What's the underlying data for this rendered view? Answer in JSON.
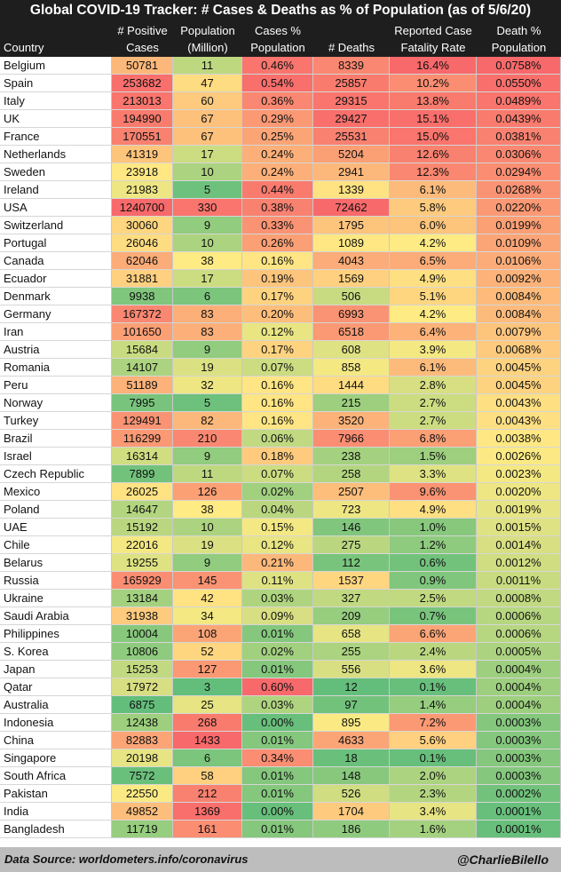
{
  "title": "Global COVID-19 Tracker: # Cases & Deaths as % of Population (as of 5/6/20)",
  "headers": {
    "country": "Country",
    "cases_1": "# Positive",
    "cases_2": "Cases",
    "pop_1": "Population",
    "pop_2": "(Million)",
    "casepct_1": "Cases %",
    "casepct_2": "Population",
    "deaths_1": "# Deaths",
    "cfr_1": "Reported Case",
    "cfr_2": "Fatality Rate",
    "deathpct_1": "Death %",
    "deathpct_2": "Population"
  },
  "footer": {
    "source": "Data Source: worldometers.info/coronavirus",
    "handle": "@CharlieBilello"
  },
  "chart_data": {
    "type": "table",
    "columns": [
      "Country",
      "# Positive Cases",
      "Population (Million)",
      "Cases % Population",
      "# Deaths",
      "Reported Case Fatality Rate",
      "Death % Population"
    ],
    "rows": [
      [
        "Belgium",
        "50781",
        "11",
        "0.46%",
        "8339",
        "16.4%",
        "0.0758%"
      ],
      [
        "Spain",
        "253682",
        "47",
        "0.54%",
        "25857",
        "10.2%",
        "0.0550%"
      ],
      [
        "Italy",
        "213013",
        "60",
        "0.36%",
        "29315",
        "13.8%",
        "0.0489%"
      ],
      [
        "UK",
        "194990",
        "67",
        "0.29%",
        "29427",
        "15.1%",
        "0.0439%"
      ],
      [
        "France",
        "170551",
        "67",
        "0.25%",
        "25531",
        "15.0%",
        "0.0381%"
      ],
      [
        "Netherlands",
        "41319",
        "17",
        "0.24%",
        "5204",
        "12.6%",
        "0.0306%"
      ],
      [
        "Sweden",
        "23918",
        "10",
        "0.24%",
        "2941",
        "12.3%",
        "0.0294%"
      ],
      [
        "Ireland",
        "21983",
        "5",
        "0.44%",
        "1339",
        "6.1%",
        "0.0268%"
      ],
      [
        "USA",
        "1240700",
        "330",
        "0.38%",
        "72462",
        "5.8%",
        "0.0220%"
      ],
      [
        "Switzerland",
        "30060",
        "9",
        "0.33%",
        "1795",
        "6.0%",
        "0.0199%"
      ],
      [
        "Portugal",
        "26046",
        "10",
        "0.26%",
        "1089",
        "4.2%",
        "0.0109%"
      ],
      [
        "Canada",
        "62046",
        "38",
        "0.16%",
        "4043",
        "6.5%",
        "0.0106%"
      ],
      [
        "Ecuador",
        "31881",
        "17",
        "0.19%",
        "1569",
        "4.9%",
        "0.0092%"
      ],
      [
        "Denmark",
        "9938",
        "6",
        "0.17%",
        "506",
        "5.1%",
        "0.0084%"
      ],
      [
        "Germany",
        "167372",
        "83",
        "0.20%",
        "6993",
        "4.2%",
        "0.0084%"
      ],
      [
        "Iran",
        "101650",
        "83",
        "0.12%",
        "6518",
        "6.4%",
        "0.0079%"
      ],
      [
        "Austria",
        "15684",
        "9",
        "0.17%",
        "608",
        "3.9%",
        "0.0068%"
      ],
      [
        "Romania",
        "14107",
        "19",
        "0.07%",
        "858",
        "6.1%",
        "0.0045%"
      ],
      [
        "Peru",
        "51189",
        "32",
        "0.16%",
        "1444",
        "2.8%",
        "0.0045%"
      ],
      [
        "Norway",
        "7995",
        "5",
        "0.16%",
        "215",
        "2.7%",
        "0.0043%"
      ],
      [
        "Turkey",
        "129491",
        "82",
        "0.16%",
        "3520",
        "2.7%",
        "0.0043%"
      ],
      [
        "Brazil",
        "116299",
        "210",
        "0.06%",
        "7966",
        "6.8%",
        "0.0038%"
      ],
      [
        "Israel",
        "16314",
        "9",
        "0.18%",
        "238",
        "1.5%",
        "0.0026%"
      ],
      [
        "Czech Republic",
        "7899",
        "11",
        "0.07%",
        "258",
        "3.3%",
        "0.0023%"
      ],
      [
        "Mexico",
        "26025",
        "126",
        "0.02%",
        "2507",
        "9.6%",
        "0.0020%"
      ],
      [
        "Poland",
        "14647",
        "38",
        "0.04%",
        "723",
        "4.9%",
        "0.0019%"
      ],
      [
        "UAE",
        "15192",
        "10",
        "0.15%",
        "146",
        "1.0%",
        "0.0015%"
      ],
      [
        "Chile",
        "22016",
        "19",
        "0.12%",
        "275",
        "1.2%",
        "0.0014%"
      ],
      [
        "Belarus",
        "19255",
        "9",
        "0.21%",
        "112",
        "0.6%",
        "0.0012%"
      ],
      [
        "Russia",
        "165929",
        "145",
        "0.11%",
        "1537",
        "0.9%",
        "0.0011%"
      ],
      [
        "Ukraine",
        "13184",
        "42",
        "0.03%",
        "327",
        "2.5%",
        "0.0008%"
      ],
      [
        "Saudi Arabia",
        "31938",
        "34",
        "0.09%",
        "209",
        "0.7%",
        "0.0006%"
      ],
      [
        "Philippines",
        "10004",
        "108",
        "0.01%",
        "658",
        "6.6%",
        "0.0006%"
      ],
      [
        "S. Korea",
        "10806",
        "52",
        "0.02%",
        "255",
        "2.4%",
        "0.0005%"
      ],
      [
        "Japan",
        "15253",
        "127",
        "0.01%",
        "556",
        "3.6%",
        "0.0004%"
      ],
      [
        "Qatar",
        "17972",
        "3",
        "0.60%",
        "12",
        "0.1%",
        "0.0004%"
      ],
      [
        "Australia",
        "6875",
        "25",
        "0.03%",
        "97",
        "1.4%",
        "0.0004%"
      ],
      [
        "Indonesia",
        "12438",
        "268",
        "0.00%",
        "895",
        "7.2%",
        "0.0003%"
      ],
      [
        "China",
        "82883",
        "1433",
        "0.01%",
        "4633",
        "5.6%",
        "0.0003%"
      ],
      [
        "Singapore",
        "20198",
        "6",
        "0.34%",
        "18",
        "0.1%",
        "0.0003%"
      ],
      [
        "South Africa",
        "7572",
        "58",
        "0.01%",
        "148",
        "2.0%",
        "0.0003%"
      ],
      [
        "Pakistan",
        "22550",
        "212",
        "0.01%",
        "526",
        "2.3%",
        "0.0002%"
      ],
      [
        "India",
        "49852",
        "1369",
        "0.00%",
        "1704",
        "3.4%",
        "0.0001%"
      ],
      [
        "Bangladesh",
        "11719",
        "161",
        "0.01%",
        "186",
        "1.6%",
        "0.0001%"
      ]
    ]
  },
  "colors": {
    "header_bg": "#1e1e1e",
    "header_text": "#ffffff",
    "footer_bg": "#bdbdbd",
    "scale_low": "#63be7b",
    "scale_mid": "#ffeb84",
    "scale_high": "#f8696b"
  }
}
